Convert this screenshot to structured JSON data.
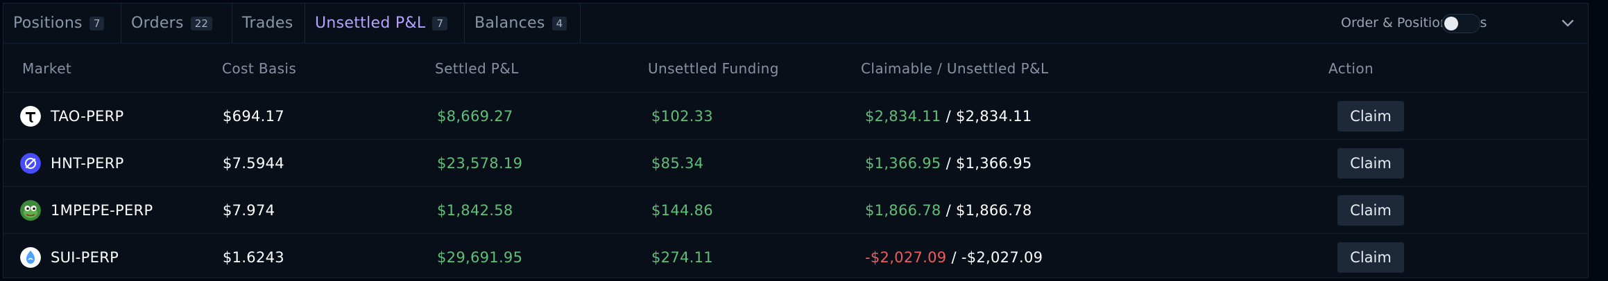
{
  "tabs": [
    {
      "label": "Positions",
      "count": "7"
    },
    {
      "label": "Orders",
      "count": "22"
    },
    {
      "label": "Trades",
      "count": ""
    },
    {
      "label": "Unsettled P&L",
      "count": "7"
    },
    {
      "label": "Balances",
      "count": "4"
    }
  ],
  "active_tab": "Unsettled P&L",
  "toggle": {
    "label": "Order & Position Lines",
    "on": false
  },
  "columns": {
    "market": "Market",
    "cost_basis": "Cost Basis",
    "settled_pnl": "Settled P&L",
    "unsettled_funding": "Unsettled Funding",
    "claimable": "Claimable / Unsettled P&L",
    "action": "Action"
  },
  "rows": [
    {
      "market": "TAO-PERP",
      "icon": "tao-icon",
      "cost_basis": "$694.17",
      "settled_pnl": "$8,669.27",
      "unsettled_funding": "$102.33",
      "claimable": "$2,834.11",
      "separator": "/",
      "unsettled_pnl": "$2,834.11",
      "claimable_status": "positive",
      "action": "Claim"
    },
    {
      "market": "HNT-PERP",
      "icon": "hnt-icon",
      "cost_basis": "$7.5944",
      "settled_pnl": "$23,578.19",
      "unsettled_funding": "$85.34",
      "claimable": "$1,366.95",
      "separator": "/",
      "unsettled_pnl": "$1,366.95",
      "claimable_status": "positive",
      "action": "Claim"
    },
    {
      "market": "1MPEPE-PERP",
      "icon": "pepe-icon",
      "cost_basis": "$7.974",
      "settled_pnl": "$1,842.58",
      "unsettled_funding": "$144.86",
      "claimable": "$1,866.78",
      "separator": "/",
      "unsettled_pnl": "$1,866.78",
      "claimable_status": "positive",
      "action": "Claim"
    },
    {
      "market": "SUI-PERP",
      "icon": "sui-icon",
      "cost_basis": "$1.6243",
      "settled_pnl": "$29,691.95",
      "unsettled_funding": "$274.11",
      "claimable": "-$2,027.09",
      "separator": "/",
      "unsettled_pnl": "-$2,027.09",
      "claimable_status": "negative",
      "action": "Claim"
    }
  ],
  "colors": {
    "background": "#030712",
    "panel": "#080f18",
    "accent": "#b6a3ff",
    "positive": "#5fbf78",
    "negative": "#ef5b5b"
  }
}
